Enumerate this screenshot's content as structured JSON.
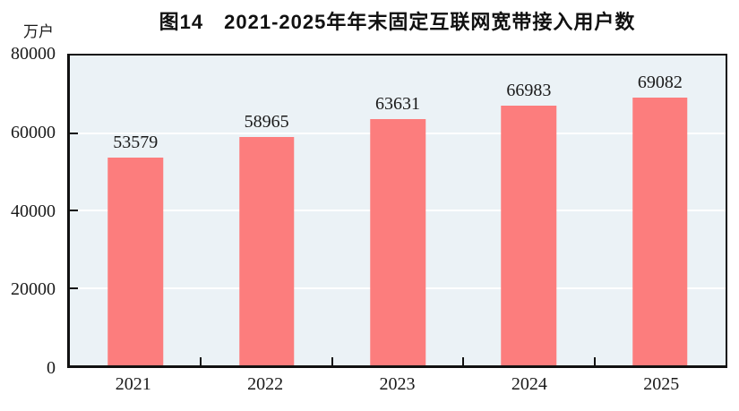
{
  "figure": {
    "title": "图14　2021-2025年年末固定互联网宽带接入用户数",
    "unit_label": "万户"
  },
  "chart_data": {
    "type": "bar",
    "title": "图14　2021-2025年年末固定互联网宽带接入用户数",
    "ylabel": "万户",
    "xlabel": "",
    "categories": [
      "2021",
      "2022",
      "2023",
      "2024",
      "2025"
    ],
    "values": [
      53579,
      58965,
      63631,
      66983,
      69082
    ],
    "ylim": [
      0,
      80000
    ],
    "yticks": [
      0,
      20000,
      40000,
      60000,
      80000
    ],
    "grid": true,
    "legend_position": "none",
    "colors": {
      "bar": "#FC7D7D",
      "plot_background": "#EBF2F6",
      "gridline": "#FFFFFF",
      "axis": "#111111",
      "text": "#1A1A1A"
    }
  }
}
